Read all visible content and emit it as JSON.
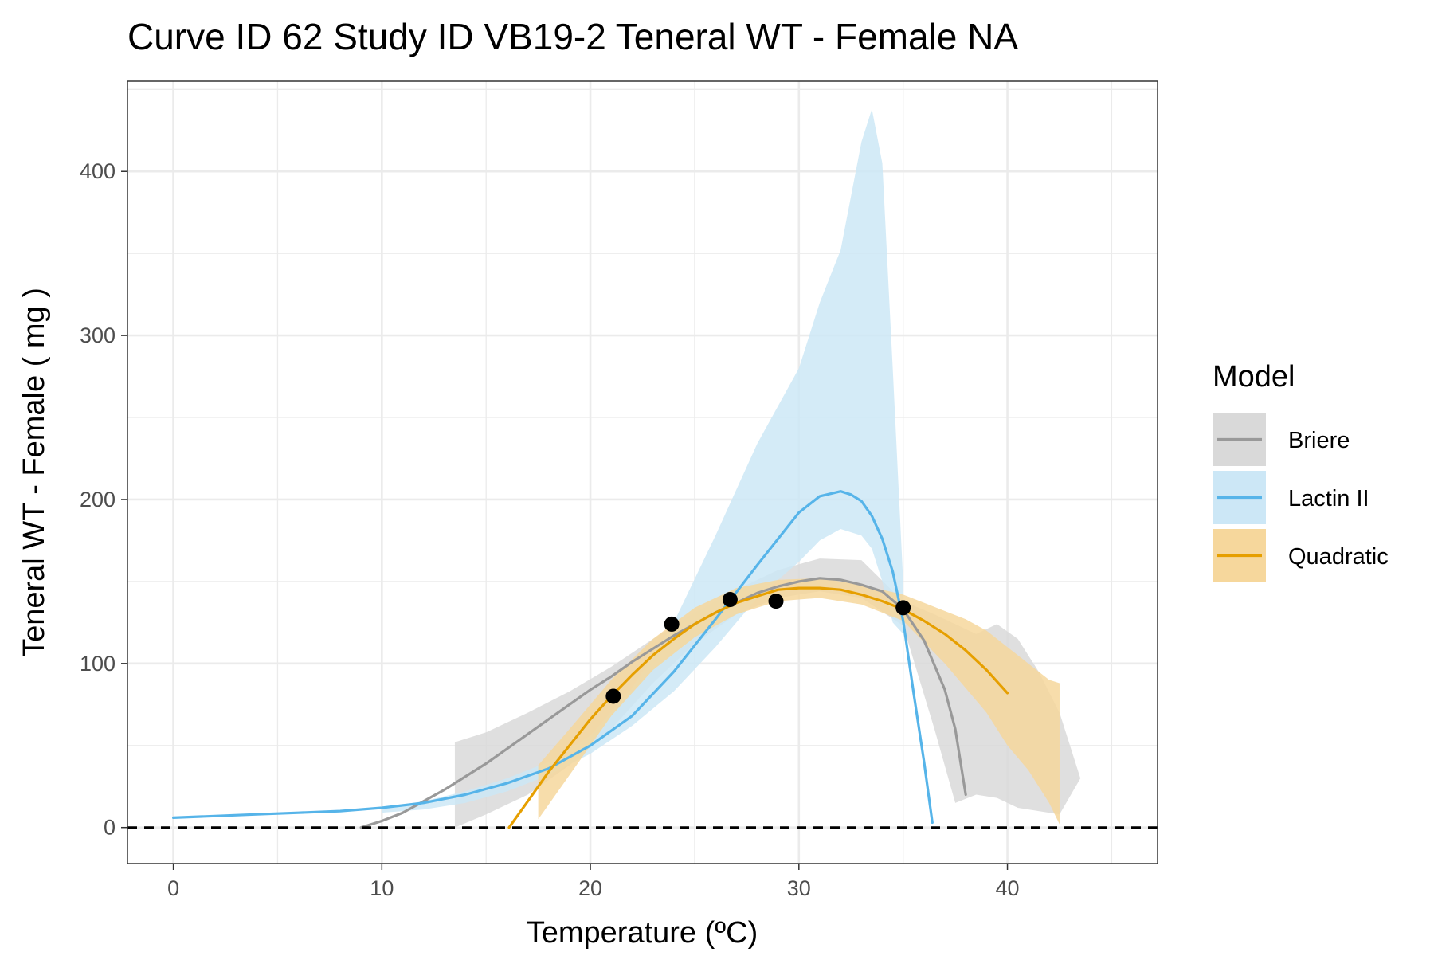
{
  "chart_data": {
    "type": "line",
    "title": "Curve ID 62 Study ID VB19-2 Teneral WT - Female NA",
    "xlabel": "Temperature (ºC)",
    "ylabel": "Teneral WT - Female ( mg )",
    "xlim": [
      -2.2,
      47.2
    ],
    "ylim": [
      -22,
      455
    ],
    "x_ticks": [
      0,
      10,
      20,
      30,
      40
    ],
    "y_ticks": [
      0,
      100,
      200,
      300,
      400
    ],
    "x_tick_labels": [
      "0",
      "10",
      "20",
      "30",
      "40"
    ],
    "y_tick_labels": [
      "0",
      "100",
      "200",
      "300",
      "400"
    ],
    "grid": true,
    "reference_line": {
      "y": 0,
      "style": "dashed",
      "color": "#000000"
    },
    "legend": {
      "title": "Model",
      "position": "right"
    },
    "points": [
      {
        "x": 21.1,
        "y": 80
      },
      {
        "x": 23.9,
        "y": 124
      },
      {
        "x": 26.7,
        "y": 139
      },
      {
        "x": 28.9,
        "y": 138
      },
      {
        "x": 35.0,
        "y": 134
      }
    ],
    "series": [
      {
        "name": "Briere",
        "color": "#999999",
        "band_color": "#d9d9d9",
        "x": [
          9,
          10,
          11,
          12,
          13,
          14,
          15,
          16,
          17,
          18,
          19,
          20,
          21,
          22,
          23,
          24,
          25,
          26,
          27,
          28,
          29,
          30,
          31,
          32,
          33,
          34,
          35,
          36,
          37,
          37.5,
          38
        ],
        "y": [
          0,
          4,
          9,
          16,
          23,
          31,
          39,
          48,
          57,
          66,
          75,
          84,
          92,
          101,
          109,
          117,
          124,
          131,
          137,
          143,
          147,
          150,
          152,
          151,
          148,
          144,
          133,
          114,
          84,
          60,
          20
        ],
        "band_x": [
          13.5,
          15,
          17,
          19,
          21,
          23,
          25,
          27,
          29,
          31,
          33,
          35,
          36.5,
          37.5,
          38.5,
          39.5,
          40.5,
          41.5,
          42.5,
          43.5
        ],
        "band_upper": [
          52,
          58,
          70,
          83,
          98,
          115,
          131,
          145,
          157,
          164,
          163,
          138,
          130,
          124,
          118,
          124,
          115,
          95,
          70,
          30
        ],
        "band_lower": [
          0,
          8,
          20,
          38,
          60,
          88,
          112,
          130,
          140,
          144,
          140,
          123,
          60,
          15,
          20,
          18,
          12,
          10,
          8,
          30
        ]
      },
      {
        "name": "Lactin II",
        "color": "#56b4e9",
        "band_color": "#cce7f6",
        "x": [
          0,
          2,
          4,
          6,
          8,
          10,
          12,
          14,
          16,
          18,
          20,
          22,
          24,
          26,
          28,
          30,
          31,
          32,
          32.5,
          33,
          33.5,
          34,
          34.5,
          35,
          35.5,
          36,
          36.4
        ],
        "y": [
          6,
          7,
          8,
          9,
          10,
          12,
          15,
          20,
          27,
          36,
          50,
          68,
          95,
          127,
          160,
          192,
          202,
          205,
          203,
          199,
          190,
          176,
          156,
          126,
          82,
          40,
          3
        ],
        "band_x": [
          10,
          12,
          14,
          16,
          18,
          20,
          22,
          24,
          26,
          28,
          30,
          31,
          32,
          33,
          33.5,
          34,
          34.5,
          35
        ],
        "band_upper": [
          12,
          16,
          22,
          30,
          40,
          56,
          85,
          125,
          178,
          234,
          280,
          320,
          352,
          418,
          438,
          405,
          280,
          150
        ],
        "band_lower": [
          9,
          11,
          15,
          22,
          32,
          45,
          62,
          83,
          110,
          140,
          162,
          175,
          182,
          178,
          170,
          150,
          125,
          118
        ]
      },
      {
        "name": "Quadratic",
        "color": "#e69f00",
        "band_color": "#f6d79c",
        "x": [
          16.1,
          17,
          18,
          19,
          20,
          21,
          22,
          23,
          24,
          25,
          26,
          27,
          28,
          29,
          30,
          31,
          32,
          33,
          34,
          35,
          36,
          37,
          38,
          39,
          40
        ],
        "y": [
          0,
          16,
          34,
          50,
          66,
          80,
          93,
          105,
          115,
          124,
          131,
          137,
          141,
          145,
          146,
          146,
          145,
          142,
          138,
          133,
          126,
          118,
          108,
          96,
          82
        ],
        "band_x": [
          17.5,
          19,
          21,
          23,
          25,
          27,
          29,
          31,
          33,
          35,
          37,
          38,
          39,
          40,
          41,
          42,
          42.5
        ],
        "band_upper": [
          38,
          60,
          90,
          115,
          134,
          146,
          151,
          152,
          148,
          142,
          132,
          127,
          120,
          110,
          100,
          90,
          88
        ],
        "band_lower": [
          5,
          32,
          68,
          96,
          116,
          130,
          138,
          140,
          136,
          126,
          100,
          85,
          70,
          50,
          35,
          15,
          2
        ]
      }
    ]
  }
}
